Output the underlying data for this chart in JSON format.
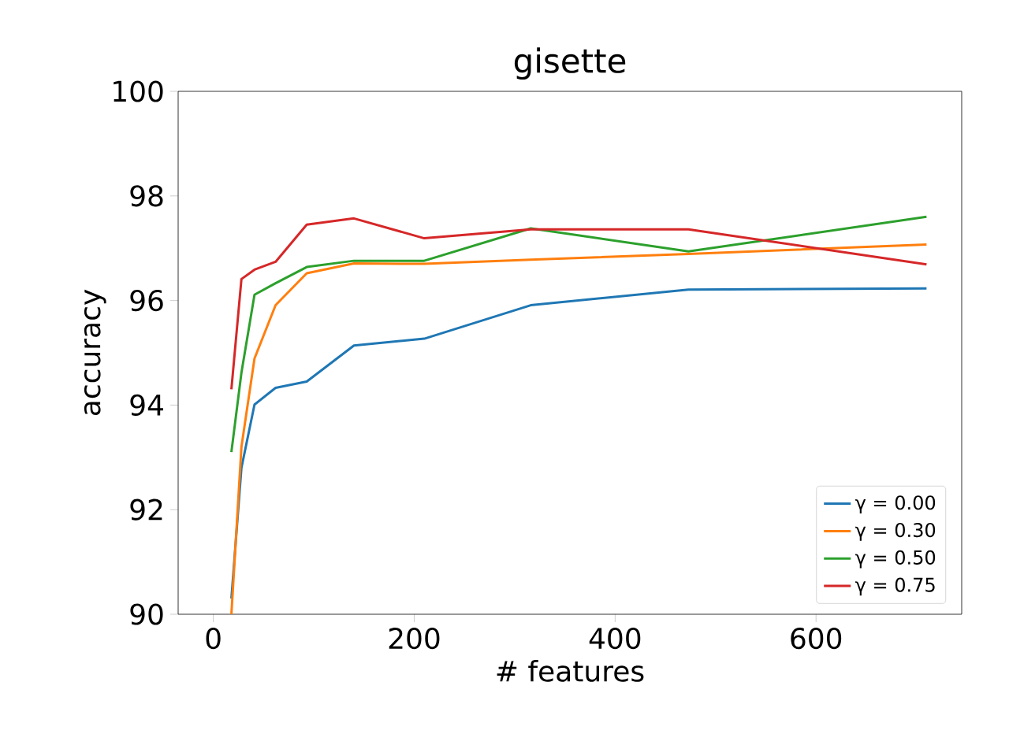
{
  "chart_data": {
    "type": "line",
    "title": "gisette",
    "xlabel": "# features",
    "ylabel": "accuracy",
    "x": [
      18,
      28,
      41,
      62,
      93,
      140,
      210,
      316,
      473,
      710
    ],
    "series": [
      {
        "name": "γ = 0.00",
        "color": "#1f77b4",
        "values": [
          90.3,
          92.8,
          94.01,
          94.33,
          94.45,
          95.14,
          95.27,
          95.91,
          96.21,
          96.23
        ]
      },
      {
        "name": "γ = 0.30",
        "color": "#ff7f0e",
        "values": [
          90.0,
          93.2,
          94.89,
          95.91,
          96.52,
          96.71,
          96.7,
          96.78,
          96.89,
          97.07
        ]
      },
      {
        "name": "γ = 0.50",
        "color": "#2ca02c",
        "values": [
          93.1,
          94.62,
          96.11,
          96.33,
          96.64,
          96.76,
          96.76,
          97.38,
          96.94,
          97.6
        ]
      },
      {
        "name": "γ = 0.75",
        "color": "#d62728",
        "values": [
          94.3,
          96.41,
          96.59,
          96.74,
          97.45,
          97.57,
          97.19,
          97.36,
          97.36,
          96.69
        ]
      }
    ],
    "xlim": [
      -35,
      745
    ],
    "ylim": [
      90,
      100
    ],
    "xticks": [
      0,
      200,
      400,
      600
    ],
    "yticks": [
      90,
      92,
      94,
      96,
      98,
      100
    ],
    "grid": false,
    "legend": "bottom right",
    "marker": "none",
    "line_style": "solid"
  }
}
